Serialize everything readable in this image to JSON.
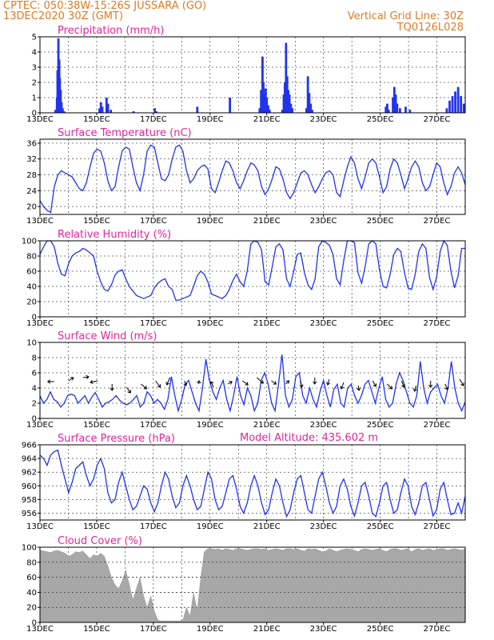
{
  "header": {
    "line1": "CPTEC:  050:38W-15:26S  JUSSARA (GO)",
    "line2": "13DEC2020 30Z (GMT)",
    "right1": "Vertical Grid Line: 30Z",
    "right2": "TQ0126L028",
    "model_altitude": "Model Altitude: 435.602  m"
  },
  "colors": {
    "header": "#e07a20",
    "title": "#e0259a",
    "series": "#2233ee",
    "bars": "#2233ee",
    "cloud": "#a8a8a8"
  },
  "x_labels": [
    "13DEC",
    "15DEC",
    "17DEC",
    "19DEC",
    "21DEC",
    "23DEC",
    "25DEC",
    "27DEC"
  ],
  "chart_data": [
    {
      "type": "bar",
      "title": "Precipitation (mm/h)",
      "ylim": [
        0,
        5
      ],
      "yticks": [
        0,
        1,
        2,
        3,
        4,
        5
      ],
      "x_days": 15,
      "points": [
        [
          0.55,
          0.2
        ],
        [
          0.6,
          1.0
        ],
        [
          0.62,
          2.8
        ],
        [
          0.65,
          4.9
        ],
        [
          0.68,
          3.5
        ],
        [
          0.7,
          2.3
        ],
        [
          0.73,
          1.5
        ],
        [
          0.76,
          0.7
        ],
        [
          0.8,
          0.3
        ],
        [
          0.85,
          0.1
        ],
        [
          2.1,
          0.3
        ],
        [
          2.15,
          0.7
        ],
        [
          2.2,
          0.4
        ],
        [
          2.35,
          1.0
        ],
        [
          2.4,
          0.6
        ],
        [
          2.5,
          0.2
        ],
        [
          3.3,
          0.1
        ],
        [
          4.05,
          0.3
        ],
        [
          4.1,
          0.1
        ],
        [
          5.55,
          0.4
        ],
        [
          6.7,
          1.0
        ],
        [
          7.75,
          0.3
        ],
        [
          7.8,
          1.5
        ],
        [
          7.85,
          3.7
        ],
        [
          7.88,
          2.0
        ],
        [
          7.92,
          1.2
        ],
        [
          7.96,
          1.6
        ],
        [
          8.0,
          1.0
        ],
        [
          8.05,
          0.5
        ],
        [
          8.1,
          0.2
        ],
        [
          8.55,
          0.2
        ],
        [
          8.6,
          1.2
        ],
        [
          8.64,
          2.0
        ],
        [
          8.68,
          4.6
        ],
        [
          8.72,
          2.4
        ],
        [
          8.76,
          1.5
        ],
        [
          8.8,
          1.2
        ],
        [
          8.85,
          0.6
        ],
        [
          8.9,
          0.3
        ],
        [
          9.4,
          0.3
        ],
        [
          9.45,
          2.4
        ],
        [
          9.5,
          1.3
        ],
        [
          9.55,
          0.6
        ],
        [
          9.6,
          0.2
        ],
        [
          12.2,
          0.4
        ],
        [
          12.25,
          0.6
        ],
        [
          12.3,
          0.2
        ],
        [
          12.45,
          1.0
        ],
        [
          12.5,
          1.7
        ],
        [
          12.55,
          1.2
        ],
        [
          12.6,
          0.6
        ],
        [
          12.7,
          0.3
        ],
        [
          12.9,
          0.4
        ],
        [
          13.05,
          0.2
        ],
        [
          14.35,
          0.3
        ],
        [
          14.45,
          0.8
        ],
        [
          14.55,
          1.1
        ],
        [
          14.65,
          1.4
        ],
        [
          14.75,
          1.7
        ],
        [
          14.85,
          1.1
        ],
        [
          14.95,
          0.6
        ]
      ]
    },
    {
      "type": "line",
      "title": "Surface Temperature (nC)",
      "ylim": [
        18,
        37
      ],
      "yticks": [
        20,
        24,
        28,
        32,
        36
      ],
      "x_days": 15,
      "values": [
        21.5,
        20.0,
        19.0,
        18.5,
        25.0,
        28.0,
        29.0,
        28.5,
        28.0,
        27.5,
        26.0,
        24.5,
        24.0,
        26.0,
        30.0,
        33.5,
        34.5,
        34.0,
        31.0,
        26.5,
        24.0,
        25.0,
        30.0,
        34.0,
        35.0,
        34.5,
        30.0,
        26.0,
        24.0,
        28.0,
        34.0,
        35.5,
        35.0,
        31.0,
        27.0,
        26.5,
        28.0,
        32.0,
        35.0,
        35.5,
        34.0,
        29.0,
        26.0,
        27.0,
        29.0,
        30.0,
        30.5,
        29.5,
        24.5,
        23.5,
        26.0,
        29.0,
        31.5,
        31.0,
        29.0,
        26.0,
        24.5,
        26.5,
        29.0,
        31.0,
        30.5,
        29.0,
        25.0,
        23.0,
        24.5,
        27.0,
        30.0,
        29.5,
        27.0,
        23.5,
        22.0,
        23.5,
        26.0,
        28.5,
        29.0,
        28.0,
        25.5,
        23.5,
        25.0,
        27.0,
        28.5,
        29.0,
        28.0,
        23.5,
        22.5,
        26.5,
        30.0,
        32.5,
        31.0,
        27.0,
        24.5,
        27.5,
        31.0,
        32.0,
        31.0,
        27.5,
        23.5,
        25.0,
        29.5,
        32.0,
        31.0,
        28.0,
        24.5,
        27.0,
        30.0,
        31.5,
        30.0,
        26.0,
        24.0,
        25.0,
        28.0,
        31.0,
        30.0,
        26.0,
        23.0,
        25.0,
        28.5,
        30.0,
        28.5,
        25.5
      ]
    },
    {
      "type": "line",
      "title": "Relative Humidity (%)",
      "ylim": [
        0,
        100
      ],
      "yticks": [
        0,
        20,
        40,
        60,
        80,
        100
      ],
      "x_days": 15,
      "values": [
        82,
        92,
        100,
        100,
        92,
        70,
        56,
        54,
        70,
        80,
        84,
        86,
        90,
        88,
        84,
        80,
        60,
        46,
        36,
        34,
        42,
        55,
        60,
        62,
        50,
        40,
        34,
        28,
        26,
        24,
        26,
        28,
        38,
        44,
        48,
        50,
        40,
        36,
        22,
        22,
        24,
        26,
        28,
        40,
        54,
        60,
        56,
        46,
        30,
        28,
        26,
        24,
        28,
        36,
        48,
        56,
        46,
        40,
        60,
        96,
        100,
        98,
        88,
        46,
        42,
        66,
        92,
        96,
        88,
        50,
        40,
        60,
        82,
        84,
        58,
        42,
        36,
        50,
        92,
        100,
        98,
        94,
        82,
        50,
        42,
        74,
        100,
        100,
        98,
        58,
        44,
        66,
        96,
        100,
        96,
        62,
        40,
        38,
        56,
        82,
        90,
        86,
        58,
        38,
        36,
        56,
        86,
        96,
        90,
        52,
        36,
        52,
        86,
        100,
        94,
        60,
        38,
        54,
        90,
        90
      ]
    },
    {
      "type": "line",
      "title": "Surface Wind (m/s)",
      "ylim": [
        0,
        10
      ],
      "yticks": [
        0,
        2,
        4,
        6,
        8,
        10
      ],
      "x_days": 15,
      "values": [
        3.0,
        2.0,
        2.5,
        3.5,
        2.5,
        2.2,
        1.5,
        2.0,
        3.0,
        3.2,
        3.0,
        2.0,
        2.5,
        3.0,
        2.0,
        2.8,
        3.4,
        2.5,
        1.5,
        2.0,
        2.2,
        2.5,
        3.0,
        2.4,
        2.0,
        1.8,
        2.0,
        2.5,
        3.0,
        1.5,
        2.0,
        3.5,
        3.0,
        2.0,
        2.5,
        2.0,
        1.2,
        2.5,
        5.5,
        3.0,
        1.0,
        2.5,
        4.5,
        5.0,
        3.5,
        2.0,
        1.0,
        4.0,
        7.8,
        5.0,
        3.5,
        2.5,
        4.0,
        5.0,
        2.5,
        1.0,
        3.0,
        5.5,
        3.0,
        1.8,
        4.0,
        3.0,
        1.0,
        2.0,
        5.0,
        6.0,
        4.5,
        2.0,
        1.0,
        4.5,
        8.4,
        3.0,
        1.5,
        2.5,
        5.5,
        6.0,
        3.0,
        2.0,
        4.0,
        2.5,
        1.5,
        3.5,
        5.0,
        3.0,
        1.5,
        3.8,
        4.5,
        2.0,
        1.5,
        4.0,
        4.5,
        3.0,
        2.0,
        3.0,
        4.5,
        5.0,
        3.5,
        2.0,
        4.0,
        5.5,
        2.5,
        1.5,
        2.0,
        4.5,
        6.0,
        5.0,
        3.5,
        2.0,
        1.5,
        3.0,
        7.5,
        4.0,
        2.0,
        3.5,
        4.0,
        4.5,
        3.0,
        2.0,
        4.0,
        7.5,
        4.0,
        2.0,
        1.0,
        2.2
      ]
    },
    {
      "type": "line",
      "title": "Surface Pressure (hPa)",
      "ylim": [
        955,
        966
      ],
      "yticks": [
        956,
        958,
        960,
        962,
        964,
        966
      ],
      "x_days": 15,
      "values": [
        964.5,
        964.0,
        963.0,
        964.5,
        965.0,
        965.2,
        963.0,
        961.0,
        959.0,
        960.5,
        962.5,
        963.0,
        963.5,
        961.5,
        960.0,
        961.0,
        963.0,
        964.0,
        962.5,
        959.0,
        957.5,
        958.0,
        960.5,
        962.0,
        960.0,
        958.0,
        956.5,
        957.0,
        958.5,
        960.0,
        959.5,
        957.5,
        956.2,
        957.5,
        960.0,
        962.0,
        961.0,
        958.5,
        956.8,
        957.5,
        960.0,
        961.5,
        960.0,
        958.0,
        956.5,
        957.0,
        959.5,
        962.0,
        961.0,
        958.0,
        956.5,
        957.0,
        959.0,
        961.0,
        961.5,
        959.5,
        957.0,
        956.0,
        957.5,
        960.0,
        961.5,
        960.0,
        957.5,
        955.8,
        956.5,
        959.0,
        961.0,
        960.0,
        957.5,
        955.5,
        956.5,
        959.0,
        961.0,
        961.5,
        959.0,
        956.5,
        956.0,
        958.5,
        961.0,
        962.0,
        960.0,
        957.5,
        956.0,
        957.0,
        960.0,
        961.0,
        959.5,
        957.0,
        955.6,
        957.5,
        960.0,
        960.5,
        958.5,
        956.0,
        955.5,
        957.5,
        960.0,
        960.5,
        958.0,
        956.0,
        956.5,
        959.0,
        961.0,
        960.0,
        957.0,
        955.8,
        957.5,
        960.0,
        960.5,
        958.0,
        955.6,
        956.5,
        959.5,
        960.5,
        958.0,
        955.8,
        956.0,
        957.5,
        956.0,
        958.5
      ]
    },
    {
      "type": "area",
      "title": "Cloud Cover (%)",
      "ylim": [
        0,
        100
      ],
      "yticks": [
        0,
        20,
        40,
        60,
        80,
        100
      ],
      "x_days": 15,
      "values": [
        96,
        95,
        94,
        93,
        95,
        96,
        94,
        92,
        88,
        90,
        94,
        93,
        95,
        90,
        85,
        90,
        88,
        92,
        88,
        75,
        60,
        50,
        45,
        55,
        70,
        50,
        30,
        45,
        60,
        35,
        20,
        35,
        15,
        3,
        2,
        2,
        2,
        2,
        2,
        2,
        3,
        20,
        8,
        40,
        15,
        60,
        94,
        98,
        98,
        97,
        98,
        96,
        98,
        97,
        96,
        98,
        98,
        97,
        96,
        97,
        98,
        98,
        97,
        98,
        96,
        97,
        98,
        97,
        96,
        98,
        98,
        97,
        98,
        96,
        95,
        98,
        97,
        98,
        96,
        94,
        95,
        98,
        96,
        94,
        96,
        97,
        98,
        97,
        96,
        94,
        97,
        98,
        97,
        96,
        97,
        98,
        96,
        94,
        97,
        98,
        98,
        96,
        97,
        98,
        94,
        97,
        98,
        96,
        97,
        98,
        96,
        97,
        98,
        98,
        96,
        97,
        98,
        97,
        96,
        98
      ]
    }
  ]
}
